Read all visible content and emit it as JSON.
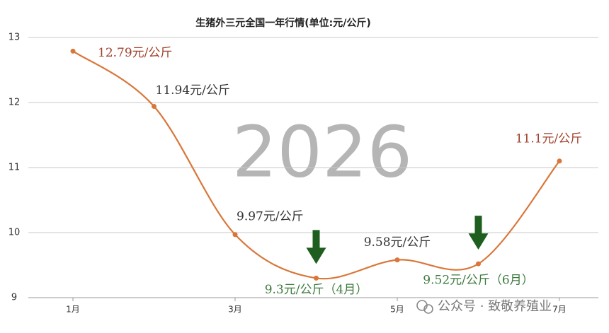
{
  "chart_data": {
    "type": "line",
    "title": "生猪外三元全国一年行情(单位:元/公斤)",
    "categories": [
      "1月",
      null,
      "3月",
      null,
      "5月",
      null,
      "7月"
    ],
    "series": [
      {
        "name": "生猪外三元",
        "color": "#d9773a",
        "values": [
          12.79,
          11.94,
          9.97,
          9.3,
          9.58,
          9.52,
          11.1
        ],
        "value_labels": [
          "12.79元/公斤",
          "11.94元/公斤",
          "9.97元/公斤",
          "9.3元/公斤（4月）",
          "9.58元/公斤",
          "9.52元/公斤（6月）",
          "11.1元/公斤"
        ],
        "label_colors": [
          "#a0412d",
          "#333333",
          "#333333",
          "#3d7a3d",
          "#333333",
          "#3d7a3d",
          "#a0412d"
        ]
      }
    ],
    "ylim": [
      9,
      13
    ],
    "yticks": [
      9,
      10,
      11,
      12,
      13
    ],
    "grid": true,
    "watermark": "2026",
    "footer": "公众号 · 致敬养殖业"
  }
}
